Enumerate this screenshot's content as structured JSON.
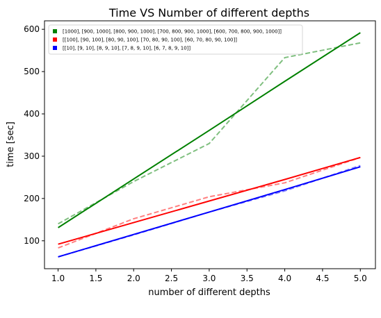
{
  "chart_data": {
    "type": "line",
    "title": "Time VS Number of different depths",
    "xlabel": "number of different depths",
    "ylabel": "time [sec]",
    "xlim": [
      0.82,
      5.2
    ],
    "ylim": [
      34,
      620
    ],
    "xticks": [
      1.0,
      1.5,
      2.0,
      2.5,
      3.0,
      3.5,
      4.0,
      4.5,
      5.0
    ],
    "xtick_labels": [
      "1.0",
      "1.5",
      "2.0",
      "2.5",
      "3.0",
      "3.5",
      "4.0",
      "4.5",
      "5.0"
    ],
    "yticks": [
      100,
      200,
      300,
      400,
      500,
      600
    ],
    "ytick_labels": [
      "100",
      "200",
      "300",
      "400",
      "500",
      "600"
    ],
    "grid": false,
    "legend_position": "top-left",
    "x": [
      1,
      2,
      3,
      4,
      5
    ],
    "series": [
      {
        "name": "[1000], [900, 1000], [800, 900, 1000], [700, 800, 900, 1000], [600, 700, 800, 900, 1000]]",
        "color": "#008000",
        "measured": [
          140,
          240,
          330,
          533,
          568
        ],
        "fit": [
          131,
          246,
          361,
          477,
          592
        ]
      },
      {
        "name": "[[100], [90, 100], [80, 90, 100], [70, 80, 90, 100], [60, 70, 80, 90, 100]]",
        "color": "#ff0000",
        "measured": [
          83,
          152,
          204,
          237,
          297
        ],
        "fit": [
          92,
          143,
          194,
          245,
          297
        ]
      },
      {
        "name": "[[10], [9, 10], [8, 9, 10], [7, 8, 9, 10], [6, 7, 8, 9, 10]]",
        "color": "#0000ff",
        "measured": [
          62,
          114,
          168,
          218,
          278
        ],
        "fit": [
          62,
          115,
          168,
          221,
          275
        ]
      }
    ]
  }
}
